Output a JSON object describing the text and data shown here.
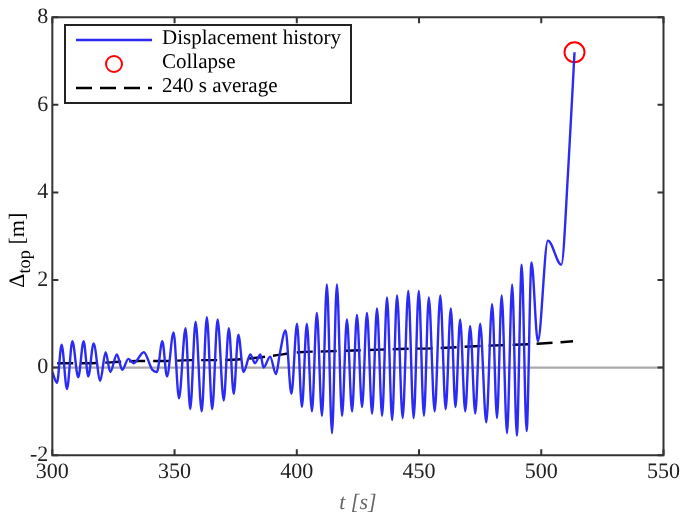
{
  "chart_data": {
    "type": "line",
    "xlabel": "t [s]",
    "ylabel": "Δ$_{top}$ [m]",
    "xlim": [
      300,
      550
    ],
    "xticks": [
      300,
      350,
      400,
      450,
      500,
      550
    ],
    "ylim": [
      -2,
      8
    ],
    "yticks": [
      -2,
      0,
      2,
      4,
      6,
      8
    ],
    "grid": false,
    "legend": "top left",
    "ref_lines": [
      {
        "axis": "y",
        "value": 0,
        "color": "#aaaaaa"
      }
    ],
    "series": [
      {
        "name": "Displacement history",
        "color": "#2b2bf5",
        "marker": "none",
        "line_style": "solid",
        "x": [
          300,
          301.9,
          303.8,
          306,
          308.2,
          310.6,
          312.8,
          314.7,
          316.9,
          319.6,
          321.8,
          323.7,
          326.4,
          328.6,
          331.1,
          333.3,
          337.4,
          340.9,
          342.8,
          345,
          346.9,
          349.6,
          351.8,
          354.5,
          356.4,
          358.6,
          361.1,
          363.2,
          365.4,
          367.6,
          370.1,
          372.2,
          374.2,
          376.1,
          378.2,
          381,
          382.9,
          385.1,
          386.4,
          389.1,
          391.5,
          393,
          395.4,
          397.8,
          400.1,
          402.1,
          404.1,
          406.2,
          408.2,
          410.3,
          412.3,
          414.4,
          416.4,
          418.5,
          420.5,
          422.6,
          424.6,
          426.7,
          428.7,
          430.8,
          432.8,
          434.9,
          436.9,
          439,
          441,
          443.3,
          445.6,
          447.8,
          449.9,
          452,
          454,
          456.4,
          458.7,
          460.9,
          463,
          464.9,
          466.8,
          468.9,
          470.9,
          473,
          475,
          477.5,
          479.9,
          481.9,
          483.8,
          486,
          488.1,
          490,
          492,
          494,
          496,
          498.6,
          502.7,
          508.2,
          511,
          513.6
        ],
        "values": [
          -0.1,
          -0.35,
          0.52,
          -0.49,
          0.6,
          -0.22,
          0.6,
          -0.2,
          0.55,
          -0.3,
          0.35,
          -0.1,
          0.3,
          -0.05,
          0.2,
          0.1,
          0.35,
          -0.05,
          -0.1,
          0.6,
          -0.2,
          0.8,
          -0.7,
          0.9,
          -0.95,
          1.05,
          -1,
          1.15,
          -0.95,
          1.1,
          -0.75,
          0.9,
          -0.6,
          0.75,
          -0.1,
          0.3,
          0.1,
          0.3,
          0,
          0.25,
          -0.15,
          0.3,
          0.85,
          -0.6,
          1,
          -0.9,
          1,
          -1,
          1.25,
          -1.1,
          1.9,
          -1.5,
          1.9,
          -1.1,
          1.1,
          -1,
          1.2,
          -0.9,
          1.25,
          -1.05,
          1.35,
          -1.1,
          1.6,
          -1.2,
          1.65,
          -1.15,
          1.75,
          -1.15,
          1.75,
          -1.1,
          1.6,
          -1,
          1.65,
          -0.95,
          1.35,
          -0.9,
          1.1,
          -1,
          0.95,
          -1.05,
          1,
          -1.25,
          1.45,
          -1.15,
          1.65,
          -1.5,
          1.9,
          -1.55,
          2.35,
          -1.45,
          2.4,
          0.6,
          2.9,
          2.35,
          4.5,
          7.2
        ]
      },
      {
        "name": "Collapse",
        "type": "scatter",
        "color": "#ff0000",
        "marker": "circle",
        "x": [
          513.6
        ],
        "values": [
          7.2
        ]
      },
      {
        "name": "240 s average",
        "color": "#000000",
        "marker": "none",
        "line_style": "dashed",
        "x": [
          302,
          313,
          324,
          335,
          346,
          357,
          368,
          379,
          390,
          401,
          412,
          423,
          434,
          445,
          456,
          467,
          478,
          489,
          500,
          513
        ],
        "values": [
          0.1,
          0.1,
          0.12,
          0.15,
          0.15,
          0.17,
          0.17,
          0.2,
          0.27,
          0.35,
          0.37,
          0.39,
          0.41,
          0.43,
          0.44,
          0.47,
          0.5,
          0.52,
          0.55,
          0.6
        ]
      }
    ]
  }
}
